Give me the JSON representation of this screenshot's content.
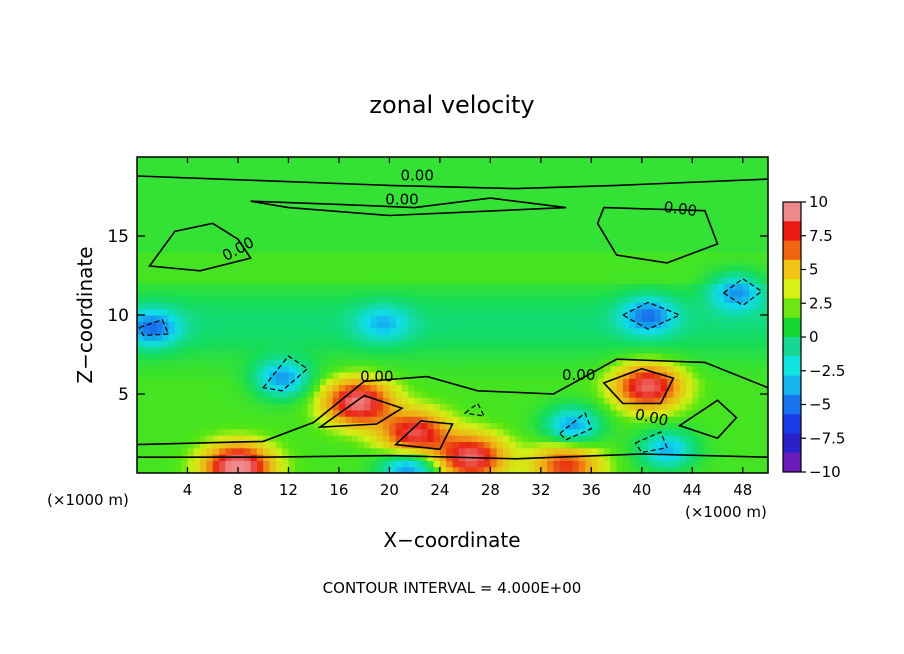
{
  "chart_data": {
    "type": "heatmap",
    "title": "zonal velocity",
    "xlabel": "X−coordinate",
    "ylabel": "Z−coordinate",
    "x_unit_label_left": "(×1000 m)",
    "x_unit_label_right": "(×1000 m)",
    "footer": "CONTOUR INTERVAL = 4.000E+00",
    "xlim": [
      0,
      50
    ],
    "ylim": [
      0,
      20
    ],
    "xticks": [
      4,
      8,
      12,
      16,
      20,
      24,
      28,
      32,
      36,
      40,
      44,
      48
    ],
    "yticks": [
      5,
      10,
      15
    ],
    "colorbar": {
      "ticks": [
        "10",
        "7.5",
        "5",
        "2.5",
        "0",
        "−2.5",
        "−5",
        "−7.5",
        "−10"
      ],
      "colors": [
        "#f08a8a",
        "#e81a12",
        "#f26510",
        "#f2c416",
        "#d8f014",
        "#6ee614",
        "#12d830",
        "#16d894",
        "#10e4e0",
        "#18b4ee",
        "#1a72ee",
        "#1a3ce6",
        "#2a22c8",
        "#6a1ab8"
      ]
    },
    "contour_interval": 4.0,
    "contour_labels": [
      "0.00",
      "0.00",
      "0.00",
      "0.00",
      "0.00",
      "0.00",
      "0.00"
    ],
    "features": [
      {
        "kind": "min",
        "x": 19.5,
        "z": 9.5,
        "value": -3.0
      },
      {
        "kind": "min",
        "x": 40.5,
        "z": 10.0,
        "value": -4.5
      },
      {
        "kind": "min",
        "x": 1.2,
        "z": 9.2,
        "value": -4.5
      },
      {
        "kind": "min",
        "x": 11.5,
        "z": 6.0,
        "value": -5.0
      },
      {
        "kind": "min",
        "x": 47.5,
        "z": 11.5,
        "value": -4.5
      },
      {
        "kind": "max",
        "x": 8.0,
        "z": 0.4,
        "value": 9.5
      },
      {
        "kind": "max",
        "x": 17.5,
        "z": 4.5,
        "value": 8.5
      },
      {
        "kind": "max",
        "x": 22.0,
        "z": 2.5,
        "value": 7.5
      },
      {
        "kind": "max",
        "x": 26.5,
        "z": 1.0,
        "value": 8.0
      },
      {
        "kind": "max",
        "x": 40.5,
        "z": 5.5,
        "value": 8.0
      },
      {
        "kind": "max",
        "x": 34.0,
        "z": 0.5,
        "value": 6.0
      },
      {
        "kind": "min",
        "x": 21.5,
        "z": 0.3,
        "value": -5.5
      },
      {
        "kind": "min",
        "x": 34.5,
        "z": 3.0,
        "value": -5.0
      },
      {
        "kind": "min",
        "x": 42.0,
        "z": 1.5,
        "value": -4.5
      }
    ]
  }
}
